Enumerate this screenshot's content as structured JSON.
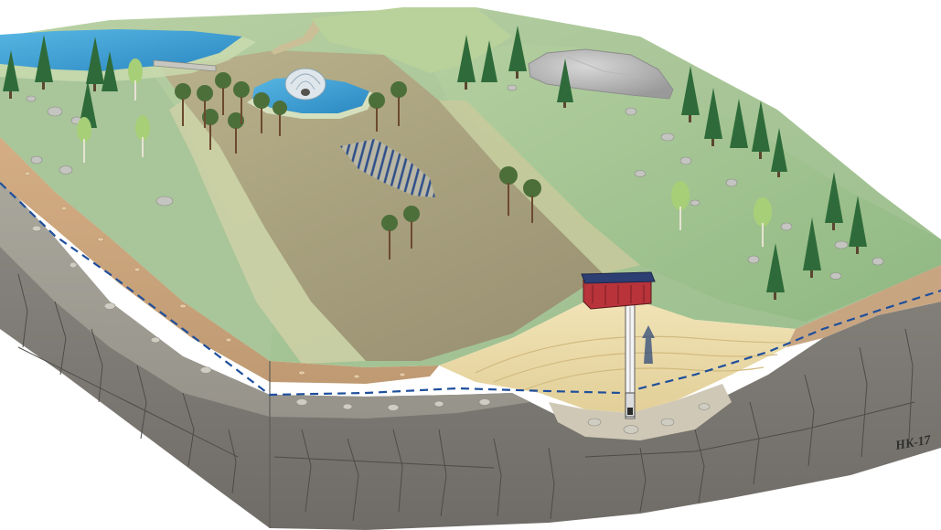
{
  "signature": "HK-17",
  "colors": {
    "water": "#3fa3d6",
    "water_deep": "#2a88c2",
    "water_table_line": "#1f4f9c",
    "soil": "#c9a27a",
    "sand": "#efe0b0",
    "bedrock": "#7d7b76",
    "grass": "#a9c99a",
    "peat": "#9f9a78",
    "well_house": "#b8333a",
    "well_roof": "#2d3e73",
    "tree": "#2f6b3a"
  },
  "icons": {
    "well": "well-icon",
    "flow_arrow": "upward-flow-arrow-icon",
    "spring": "spring-dome-icon"
  }
}
